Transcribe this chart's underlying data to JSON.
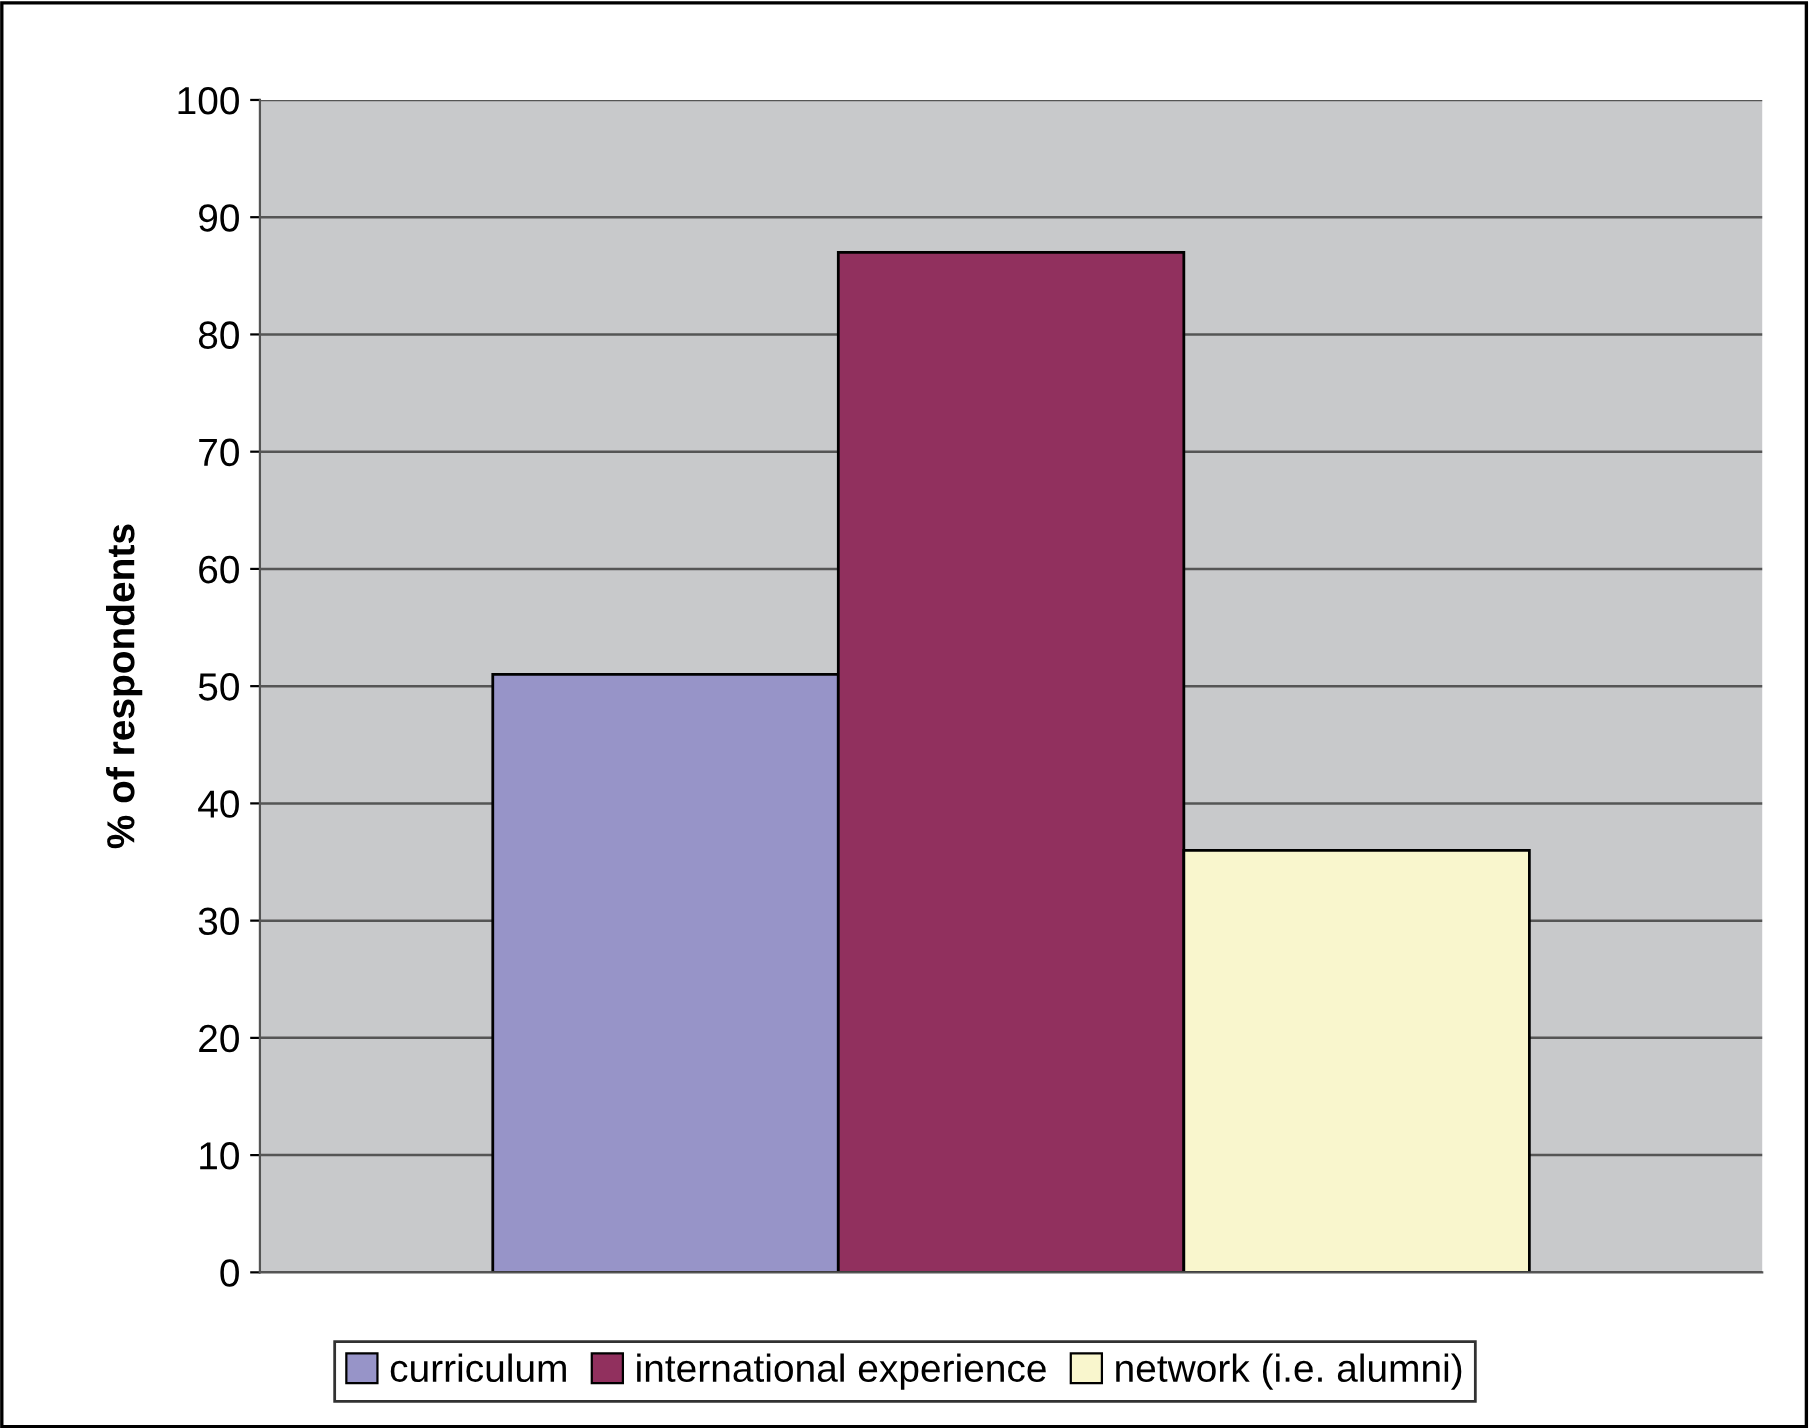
{
  "chart_data": {
    "type": "bar",
    "ylabel": "% of respondents",
    "categories": [
      null
    ],
    "series": [
      {
        "name": "curriculum",
        "color": "#9794c8",
        "values": [
          51
        ]
      },
      {
        "name": "international experience",
        "color": "#91305e",
        "values": [
          87
        ]
      },
      {
        "name": "network (i.e. alumni)",
        "color": "#f9f6cd",
        "values": [
          36
        ]
      }
    ],
    "ylim": [
      0,
      100
    ],
    "yticks": [
      0,
      10,
      20,
      30,
      40,
      50,
      60,
      70,
      80,
      90,
      100
    ],
    "grid": "y",
    "legend": "bottom"
  }
}
